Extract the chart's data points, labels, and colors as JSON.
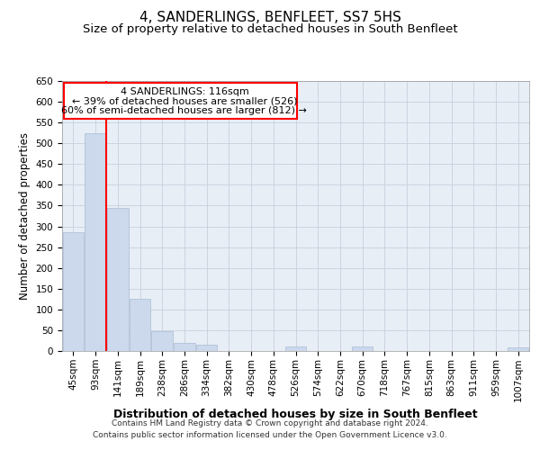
{
  "title": "4, SANDERLINGS, BENFLEET, SS7 5HS",
  "subtitle": "Size of property relative to detached houses in South Benfleet",
  "xlabel": "Distribution of detached houses by size in South Benfleet",
  "ylabel": "Number of detached properties",
  "bin_labels": [
    "45sqm",
    "93sqm",
    "141sqm",
    "189sqm",
    "238sqm",
    "286sqm",
    "334sqm",
    "382sqm",
    "430sqm",
    "478sqm",
    "526sqm",
    "574sqm",
    "622sqm",
    "670sqm",
    "718sqm",
    "767sqm",
    "815sqm",
    "863sqm",
    "911sqm",
    "959sqm",
    "1007sqm"
  ],
  "values": [
    285,
    525,
    345,
    125,
    48,
    20,
    15,
    0,
    0,
    0,
    10,
    0,
    0,
    10,
    0,
    0,
    0,
    0,
    0,
    0,
    8
  ],
  "bar_color": "#ccd9ed",
  "bar_edgecolor": "#aabbd4",
  "grid_color": "#c8d0dc",
  "background_color": "#e8eef6",
  "annotation_line1": "4 SANDERLINGS: 116sqm",
  "annotation_line2": "← 39% of detached houses are smaller (526)",
  "annotation_line3": "60% of semi-detached houses are larger (812) →",
  "redline_bin": 1,
  "ylim": [
    0,
    650
  ],
  "yticks": [
    0,
    50,
    100,
    150,
    200,
    250,
    300,
    350,
    400,
    450,
    500,
    550,
    600,
    650
  ],
  "footer_line1": "Contains HM Land Registry data © Crown copyright and database right 2024.",
  "footer_line2": "Contains public sector information licensed under the Open Government Licence v3.0.",
  "title_fontsize": 11,
  "subtitle_fontsize": 9.5,
  "xlabel_fontsize": 9,
  "ylabel_fontsize": 8.5,
  "tick_fontsize": 7.5,
  "footer_fontsize": 6.5
}
